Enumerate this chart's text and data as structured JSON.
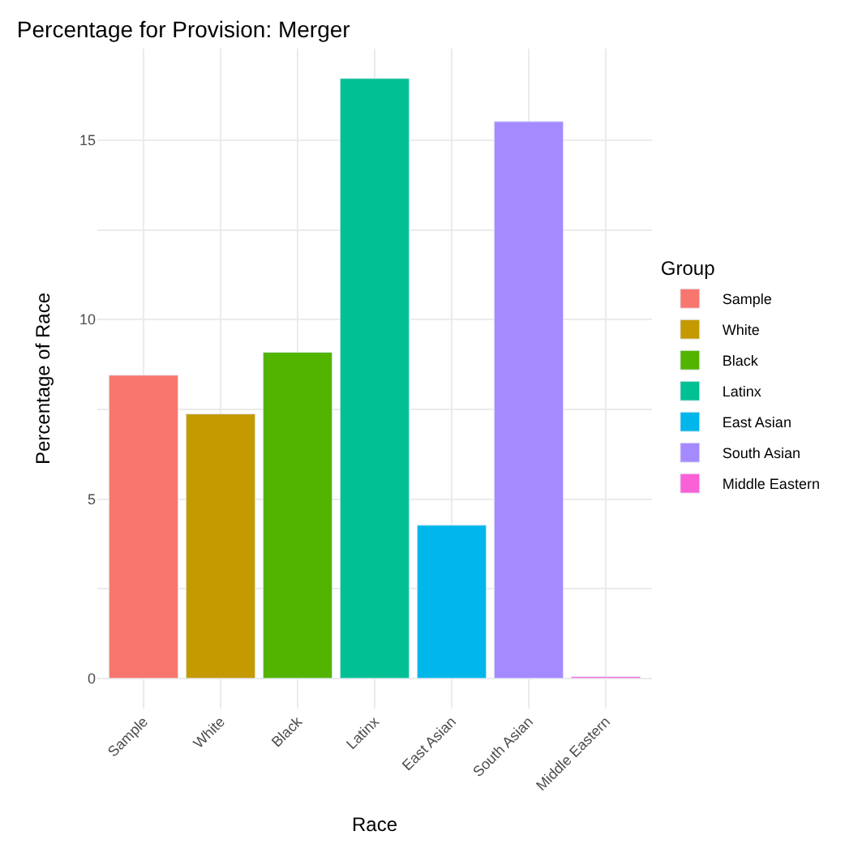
{
  "chart_data": {
    "type": "bar",
    "title": "Percentage for Provision: Merger",
    "xlabel": "Race",
    "ylabel": "Percentage of Race",
    "legend_title": "Group",
    "categories": [
      "Sample",
      "White",
      "Black",
      "Latinx",
      "East Asian",
      "South Asian",
      "Middle Eastern"
    ],
    "series": [
      {
        "name": "Sample",
        "color": "#f8766d",
        "values": [
          8.45,
          null,
          null,
          null,
          null,
          null,
          null
        ]
      },
      {
        "name": "White",
        "color": "#c49a00",
        "values": [
          null,
          7.37,
          null,
          null,
          null,
          null,
          null
        ]
      },
      {
        "name": "Black",
        "color": "#53b400",
        "values": [
          null,
          null,
          9.09,
          null,
          null,
          null,
          null
        ]
      },
      {
        "name": "Latinx",
        "color": "#00c094",
        "values": [
          null,
          null,
          null,
          16.72,
          null,
          null,
          null
        ]
      },
      {
        "name": "East Asian",
        "color": "#00b6eb",
        "values": [
          null,
          null,
          null,
          null,
          4.27,
          null,
          null
        ]
      },
      {
        "name": "South Asian",
        "color": "#a58aff",
        "values": [
          null,
          null,
          null,
          null,
          null,
          15.52,
          null
        ]
      },
      {
        "name": "Middle Eastern",
        "color": "#fb61d7",
        "values": [
          null,
          null,
          null,
          null,
          null,
          null,
          0.05
        ]
      }
    ],
    "ylim": [
      -0.84,
      17.55
    ],
    "yticks": [
      0,
      {
        "value": 2.5,
        "label": null
      },
      5,
      {
        "value": 7.5,
        "label": null
      },
      10,
      {
        "value": 12.5,
        "label": null
      },
      15
    ],
    "grid": true,
    "legend": "right"
  }
}
